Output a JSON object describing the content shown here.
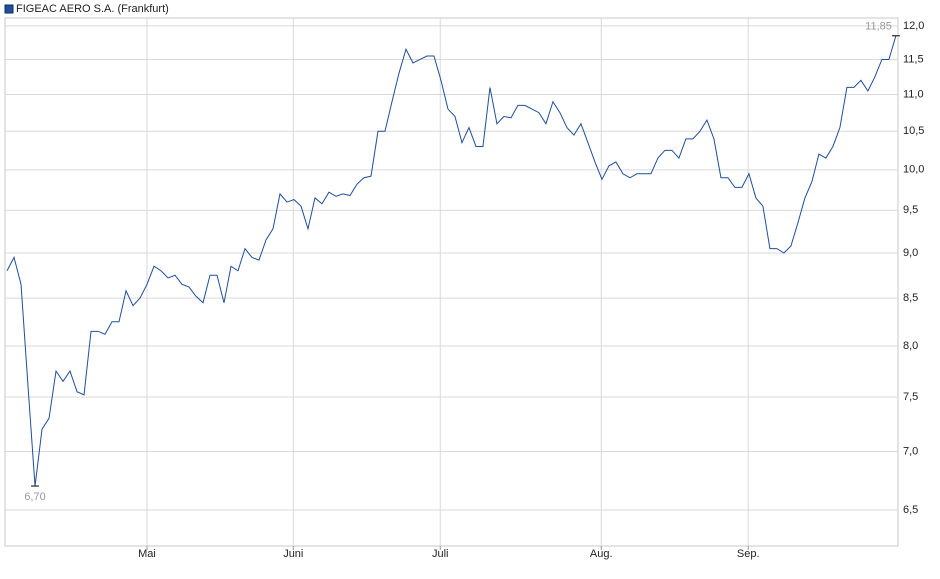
{
  "chart_data": {
    "type": "line",
    "log_y": true,
    "grid": true,
    "series": [
      {
        "name": "FIGEAC AERO S.A. (Frankfurt)",
        "color": "#1f4e9a",
        "values": [
          8.8,
          8.95,
          8.65,
          7.6,
          6.7,
          7.2,
          7.3,
          7.75,
          7.65,
          7.75,
          7.55,
          7.52,
          8.15,
          8.15,
          8.12,
          8.25,
          8.25,
          8.58,
          8.42,
          8.5,
          8.65,
          8.85,
          8.8,
          8.72,
          8.75,
          8.65,
          8.62,
          8.52,
          8.45,
          8.75,
          8.75,
          8.45,
          8.85,
          8.8,
          9.05,
          8.95,
          8.92,
          9.15,
          9.28,
          9.7,
          9.6,
          9.63,
          9.55,
          9.28,
          9.65,
          9.58,
          9.72,
          9.67,
          9.7,
          9.68,
          9.82,
          9.9,
          9.92,
          10.5,
          10.5,
          10.9,
          11.3,
          11.65,
          11.45,
          11.5,
          11.55,
          11.55,
          11.2,
          10.8,
          10.7,
          10.35,
          10.55,
          10.3,
          10.3,
          11.1,
          10.6,
          10.7,
          10.68,
          10.85,
          10.85,
          10.8,
          10.75,
          10.6,
          10.9,
          10.75,
          10.55,
          10.45,
          10.6,
          10.35,
          10.1,
          9.88,
          10.05,
          10.1,
          9.95,
          9.9,
          9.95,
          9.95,
          9.95,
          10.15,
          10.25,
          10.25,
          10.15,
          10.4,
          10.4,
          10.5,
          10.65,
          10.4,
          9.9,
          9.9,
          9.78,
          9.78,
          9.95,
          9.65,
          9.55,
          9.05,
          9.05,
          9.0,
          9.08,
          9.35,
          9.65,
          9.85,
          10.2,
          10.15,
          10.3,
          10.55,
          11.1,
          11.1,
          11.2,
          11.05,
          11.25,
          11.5,
          11.5,
          11.85
        ],
        "value_labels": [
          null,
          null,
          null,
          null,
          "6,70",
          null,
          null,
          null,
          null,
          null,
          null,
          null,
          null,
          null,
          null,
          null,
          null,
          null,
          null,
          null,
          null,
          null,
          null,
          null,
          null,
          null,
          null,
          null,
          null,
          null,
          null,
          null,
          null,
          null,
          null,
          null,
          null,
          null,
          null,
          null,
          null,
          null,
          null,
          null,
          null,
          null,
          null,
          null,
          null,
          null,
          null,
          null,
          null,
          null,
          null,
          null,
          null,
          null,
          null,
          null,
          null,
          null,
          null,
          null,
          null,
          null,
          null,
          null,
          null,
          null,
          null,
          null,
          null,
          null,
          null,
          null,
          null,
          null,
          null,
          null,
          null,
          null,
          null,
          null,
          null,
          null,
          null,
          null,
          null,
          null,
          null,
          null,
          null,
          null,
          null,
          null,
          null,
          null,
          null,
          null,
          null,
          null,
          null,
          null,
          null,
          null,
          null,
          null,
          null,
          null,
          null,
          null,
          null,
          null,
          null,
          null,
          null,
          null,
          null,
          null,
          null,
          null,
          null,
          null,
          null,
          null,
          null,
          "11,85"
        ]
      }
    ],
    "x": [
      0,
      1,
      2,
      3,
      4,
      5,
      6,
      7,
      8,
      9,
      10,
      11,
      12,
      13,
      14,
      15,
      16,
      17,
      18,
      19,
      20,
      21,
      22,
      23,
      24,
      25,
      26,
      27,
      28,
      29,
      30,
      31,
      32,
      33,
      34,
      35,
      36,
      37,
      38,
      39,
      40,
      41,
      42,
      43,
      44,
      45,
      46,
      47,
      48,
      49,
      50,
      51,
      52,
      53,
      54,
      55,
      56,
      57,
      58,
      59,
      60,
      61,
      62,
      63,
      64,
      65,
      66,
      67,
      68,
      69,
      70,
      71,
      72,
      73,
      74,
      75,
      76,
      77,
      78,
      79,
      80,
      81,
      82,
      83,
      84,
      85,
      86,
      87,
      88,
      89,
      90,
      91,
      92,
      93,
      94,
      95,
      96,
      97,
      98,
      99,
      100,
      101,
      102,
      103,
      104,
      105,
      106,
      107,
      108,
      109,
      110,
      111,
      112,
      113,
      114,
      115,
      116,
      117,
      118,
      119,
      120,
      121,
      122,
      123,
      124,
      125,
      126,
      127
    ],
    "xlim": [
      -0.29,
      127.3
    ],
    "xticks": [
      {
        "value": 20,
        "label": "Mai"
      },
      {
        "value": 40.9,
        "label": "Juni"
      },
      {
        "value": 61.9,
        "label": "Juli"
      },
      {
        "value": 84.9,
        "label": "Aug."
      },
      {
        "value": 105.9,
        "label": "Sep."
      }
    ],
    "ylim": [
      6.21,
      12.12
    ],
    "yticks": [
      {
        "value": 6.5,
        "label": "6,5"
      },
      {
        "value": 7.0,
        "label": "7,0"
      },
      {
        "value": 7.5,
        "label": "7,5"
      },
      {
        "value": 8.0,
        "label": "8,0"
      },
      {
        "value": 8.5,
        "label": "8,5"
      },
      {
        "value": 9.0,
        "label": "9,0"
      },
      {
        "value": 9.5,
        "label": "9,5"
      },
      {
        "value": 10.0,
        "label": "10,0"
      },
      {
        "value": 10.5,
        "label": "10,5"
      },
      {
        "value": 11.0,
        "label": "11,0"
      },
      {
        "value": 11.5,
        "label": "11,5"
      },
      {
        "value": 12.0,
        "label": "12,0"
      }
    ]
  }
}
